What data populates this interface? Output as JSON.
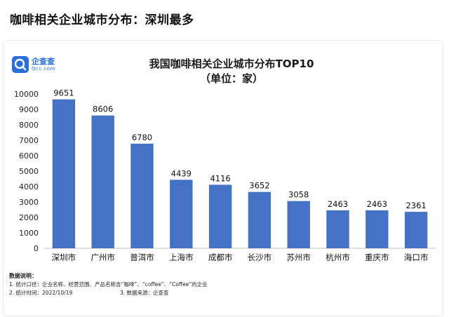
{
  "headline": "咖啡相关企业城市分布：深圳最多",
  "logo": {
    "name": "企查查",
    "domain": "Qcc.com"
  },
  "chart_data": {
    "type": "bar",
    "title": "我国咖啡相关企业城市分布TOP10",
    "subtitle": "（单位：家）",
    "categories": [
      "深圳市",
      "广州市",
      "普洱市",
      "上海市",
      "成都市",
      "长沙市",
      "苏州市",
      "杭州市",
      "重庆市",
      "海口市"
    ],
    "values": [
      9651,
      8606,
      6780,
      4439,
      4116,
      3652,
      3058,
      2463,
      2463,
      2361
    ],
    "ylim": [
      0,
      10000
    ],
    "yticks": [
      0,
      1000,
      2000,
      3000,
      4000,
      5000,
      6000,
      7000,
      8000,
      9000,
      10000
    ],
    "grid": false,
    "legend": "none",
    "bar_color": "#4472c4",
    "xlabel": "",
    "ylabel": ""
  },
  "notes": {
    "title": "数据说明：",
    "line1": "1. 统计口径：企业名称、经营范围、产品名称含“咖啡”、“coffee”、“Coffee”的企业",
    "line2": "2. 统计时间：2022/10/19",
    "line3": "3. 数据来源：企查查"
  }
}
